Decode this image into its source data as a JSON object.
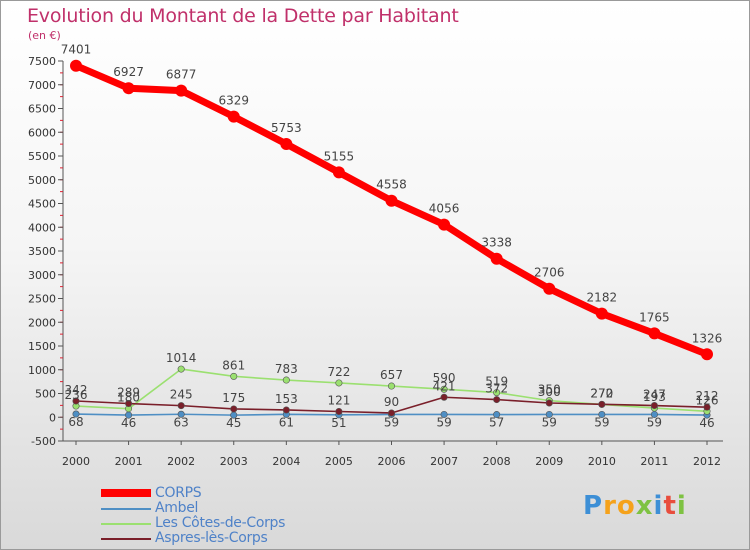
{
  "chart_data": {
    "type": "line",
    "title": "Evolution du Montant de la Dette par Habitant",
    "unit_label": "(en €)",
    "x": [
      "2000",
      "2001",
      "2002",
      "2003",
      "2004",
      "2005",
      "2006",
      "2007",
      "2008",
      "2009",
      "2010",
      "2011",
      "2012"
    ],
    "ylim": [
      -500,
      7500
    ],
    "yticks": [
      -500,
      0,
      500,
      1000,
      1500,
      2000,
      2500,
      3000,
      3500,
      4000,
      4500,
      5000,
      5500,
      6000,
      6500,
      7000,
      7500
    ],
    "grid": false,
    "legend_position": "bottom-left",
    "series": [
      {
        "name": "CORPS",
        "color": "#ff0000",
        "values": [
          7401,
          6927,
          6877,
          6329,
          5753,
          5155,
          4558,
          4056,
          3338,
          2706,
          2182,
          1765,
          1326
        ],
        "labels": [
          "7401",
          "6927",
          "6877",
          "6329",
          "5753",
          "5155",
          "4558",
          "4056",
          "3338",
          "2706",
          "2182",
          "1765",
          "1326"
        ]
      },
      {
        "name": "Ambel",
        "color": "#4f8fc4",
        "values": [
          68,
          46,
          63,
          45,
          61,
          51,
          59,
          59,
          57,
          59,
          59,
          59,
          46
        ],
        "labels": [
          "68",
          "46",
          "63",
          "45",
          "61",
          "51",
          "59",
          "59",
          "57",
          "59",
          "59",
          "59",
          "46"
        ]
      },
      {
        "name": "Les Côtes-de-Corps",
        "color": "#9be070",
        "values": [
          236,
          180,
          1014,
          861,
          783,
          722,
          657,
          590,
          519,
          350,
          270,
          193,
          126
        ],
        "labels": [
          "236",
          "180",
          "1014",
          "861",
          "783",
          "722",
          "657",
          "590",
          "519",
          "350",
          "270",
          "193",
          "126"
        ]
      },
      {
        "name": "Aspres-lès-Corps",
        "color": "#7a1f2a",
        "values": [
          342,
          289,
          245,
          175,
          153,
          121,
          90,
          421,
          372,
          300,
          272,
          247,
          212
        ],
        "labels": [
          "342",
          "289",
          "245",
          "175",
          "153",
          "121",
          "90",
          "421",
          "372",
          "300",
          "272",
          "247",
          "212"
        ]
      }
    ]
  },
  "legend": {
    "items": [
      {
        "label": "CORPS",
        "color": "#ff0000"
      },
      {
        "label": "Ambel",
        "color": "#4f8fc4"
      },
      {
        "label": "Les Côtes-de-Corps",
        "color": "#9be070"
      },
      {
        "label": "Aspres-lès-Corps",
        "color": "#7a1f2a"
      }
    ]
  },
  "brand": {
    "letters": [
      "P",
      "r",
      "o",
      "x",
      "i",
      "t",
      "i"
    ],
    "colors": [
      "#3d8fd6",
      "#f5a21b",
      "#f5a21b",
      "#7ec242",
      "#3d8fd6",
      "#e84d3d",
      "#7ec242"
    ]
  }
}
